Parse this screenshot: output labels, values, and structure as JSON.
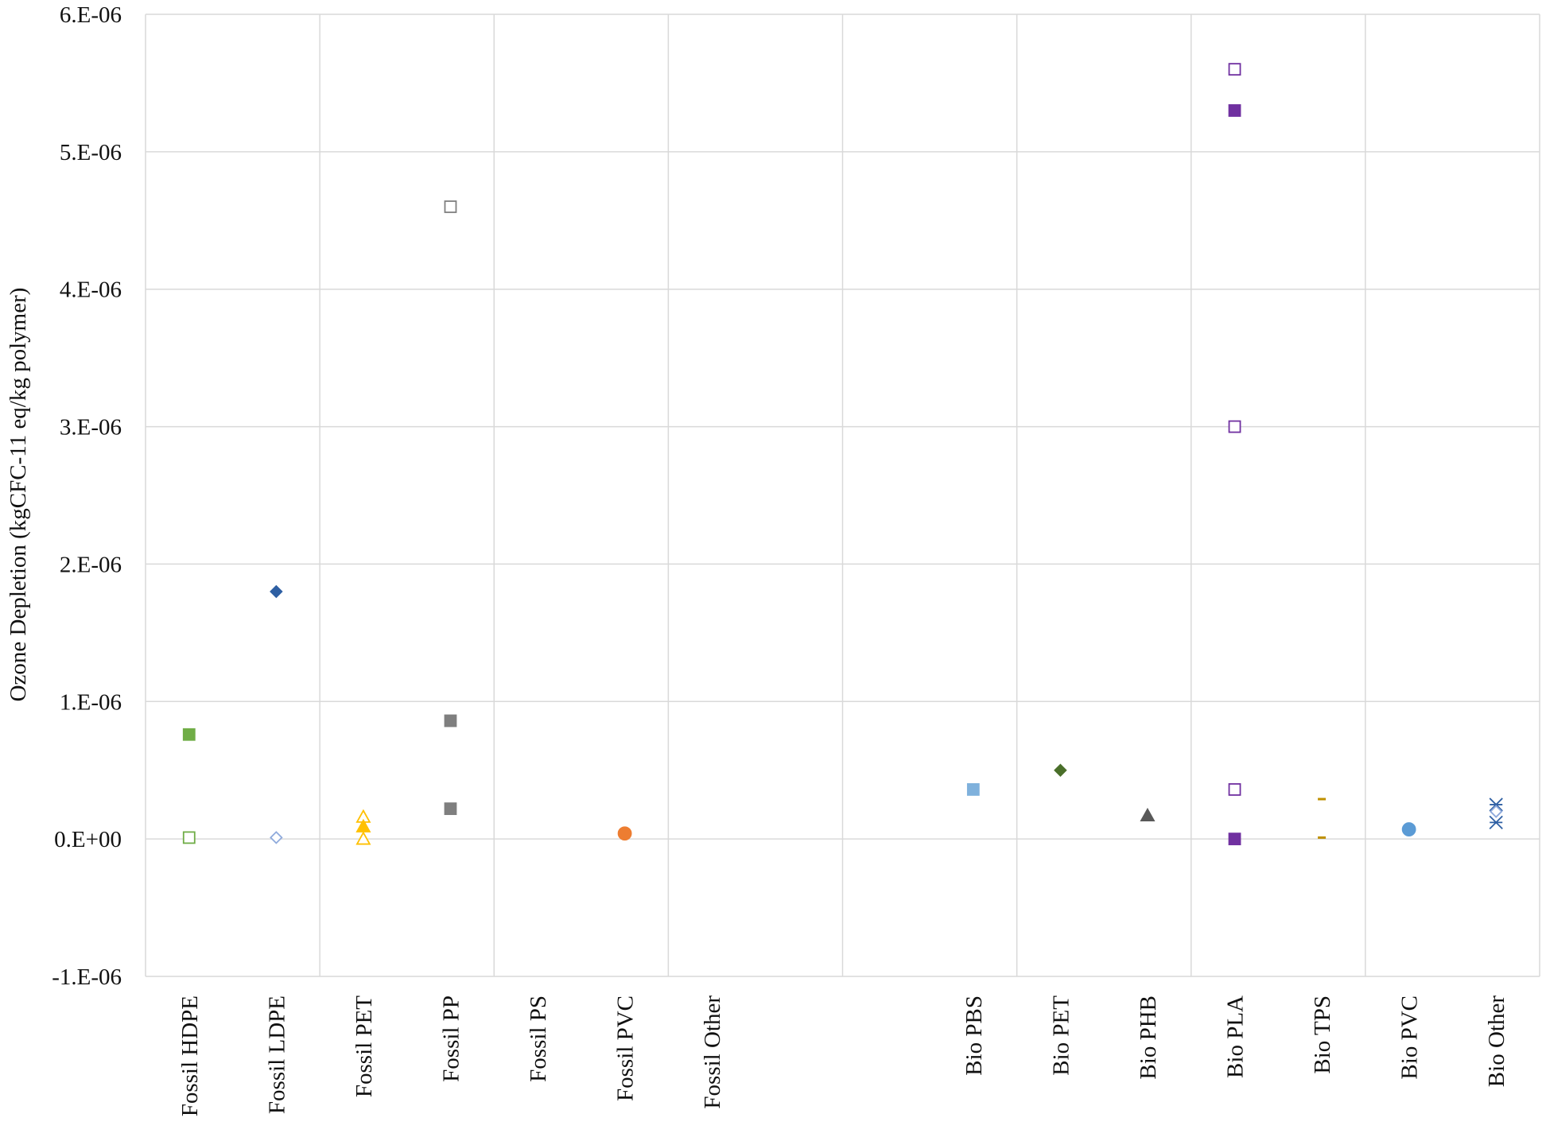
{
  "chart_data": {
    "type": "scatter",
    "title": "",
    "xlabel": "",
    "ylabel": "Ozone Depletion (kgCFC-11 eq/kg polymer)",
    "ylim": [
      -1e-06,
      6e-06
    ],
    "grid": true,
    "legend": "none",
    "categories": [
      "Fossil HDPE",
      "Fossil LDPE",
      "Fossil PET",
      "Fossil PP",
      "Fossil PS",
      "Fossil PVC",
      "Fossil Other",
      "",
      "",
      "Bio PBS",
      "Bio PET",
      "Bio PHB",
      "Bio PLA",
      "Bio TPS",
      "Bio PVC",
      "Bio Other"
    ],
    "y_ticks": [
      {
        "value": -1e-06,
        "label": "-1.E-06"
      },
      {
        "value": 0,
        "label": "0.E+00"
      },
      {
        "value": 1e-06,
        "label": "1.E-06"
      },
      {
        "value": 2e-06,
        "label": "2.E-06"
      },
      {
        "value": 3e-06,
        "label": "3.E-06"
      },
      {
        "value": 4e-06,
        "label": "4.E-06"
      },
      {
        "value": 5e-06,
        "label": "5.E-06"
      },
      {
        "value": 6e-06,
        "label": "6.E-06"
      }
    ],
    "points": [
      {
        "category": "Fossil HDPE",
        "y": 7.6e-07,
        "marker": "square",
        "filled": true,
        "color": "#70ad47"
      },
      {
        "category": "Fossil HDPE",
        "y": 1e-08,
        "marker": "square",
        "filled": false,
        "color": "#70ad47"
      },
      {
        "category": "Fossil LDPE",
        "y": 1.8e-06,
        "marker": "diamond",
        "filled": true,
        "color": "#2e5fa3"
      },
      {
        "category": "Fossil LDPE",
        "y": 1e-08,
        "marker": "diamond",
        "filled": false,
        "color": "#8faadc"
      },
      {
        "category": "Fossil PET",
        "y": 1.6e-07,
        "marker": "triangle",
        "filled": false,
        "color": "#ffc000"
      },
      {
        "category": "Fossil PET",
        "y": 9e-08,
        "marker": "triangle",
        "filled": true,
        "color": "#ffc000"
      },
      {
        "category": "Fossil PET",
        "y": 0,
        "marker": "triangle",
        "filled": false,
        "color": "#ffc000"
      },
      {
        "category": "Fossil PP",
        "y": 4.6e-06,
        "marker": "square",
        "filled": false,
        "color": "#7f7f7f"
      },
      {
        "category": "Fossil PP",
        "y": 8.6e-07,
        "marker": "square",
        "filled": true,
        "color": "#7f7f7f"
      },
      {
        "category": "Fossil PP",
        "y": 2.2e-07,
        "marker": "square",
        "filled": true,
        "color": "#7f7f7f"
      },
      {
        "category": "Fossil PVC",
        "y": 4e-08,
        "marker": "circle",
        "filled": true,
        "color": "#ed7d31"
      },
      {
        "category": "Bio PBS",
        "y": 3.6e-07,
        "marker": "square",
        "filled": true,
        "color": "#7fb1dc"
      },
      {
        "category": "Bio PET",
        "y": 5e-07,
        "marker": "diamond",
        "filled": true,
        "color": "#4a6f2a"
      },
      {
        "category": "Bio PHB",
        "y": 1.7e-07,
        "marker": "triangle",
        "filled": true,
        "color": "#595959"
      },
      {
        "category": "Bio PLA",
        "y": 5.6e-06,
        "marker": "square",
        "filled": false,
        "color": "#7030a0"
      },
      {
        "category": "Bio PLA",
        "y": 5.3e-06,
        "marker": "square",
        "filled": true,
        "color": "#7030a0"
      },
      {
        "category": "Bio PLA",
        "y": 3e-06,
        "marker": "square",
        "filled": false,
        "color": "#7030a0"
      },
      {
        "category": "Bio PLA",
        "y": 3.6e-07,
        "marker": "square",
        "filled": false,
        "color": "#7030a0"
      },
      {
        "category": "Bio PLA",
        "y": 0,
        "marker": "square",
        "filled": true,
        "color": "#7030a0"
      },
      {
        "category": "Bio TPS",
        "y": 2.9e-07,
        "marker": "dash",
        "filled": true,
        "color": "#bf9000"
      },
      {
        "category": "Bio TPS",
        "y": 1e-08,
        "marker": "dash",
        "filled": true,
        "color": "#bf9000"
      },
      {
        "category": "Bio PVC",
        "y": 7e-08,
        "marker": "circle",
        "filled": true,
        "color": "#5b9bd5"
      },
      {
        "category": "Bio Other",
        "y": 2.5e-07,
        "marker": "star",
        "filled": false,
        "color": "#2e5fa3"
      },
      {
        "category": "Bio Other",
        "y": 2e-07,
        "marker": "diamond",
        "filled": false,
        "color": "#8faadc"
      },
      {
        "category": "Bio Other",
        "y": 1.2e-07,
        "marker": "star",
        "filled": false,
        "color": "#2e5fa3"
      }
    ]
  }
}
